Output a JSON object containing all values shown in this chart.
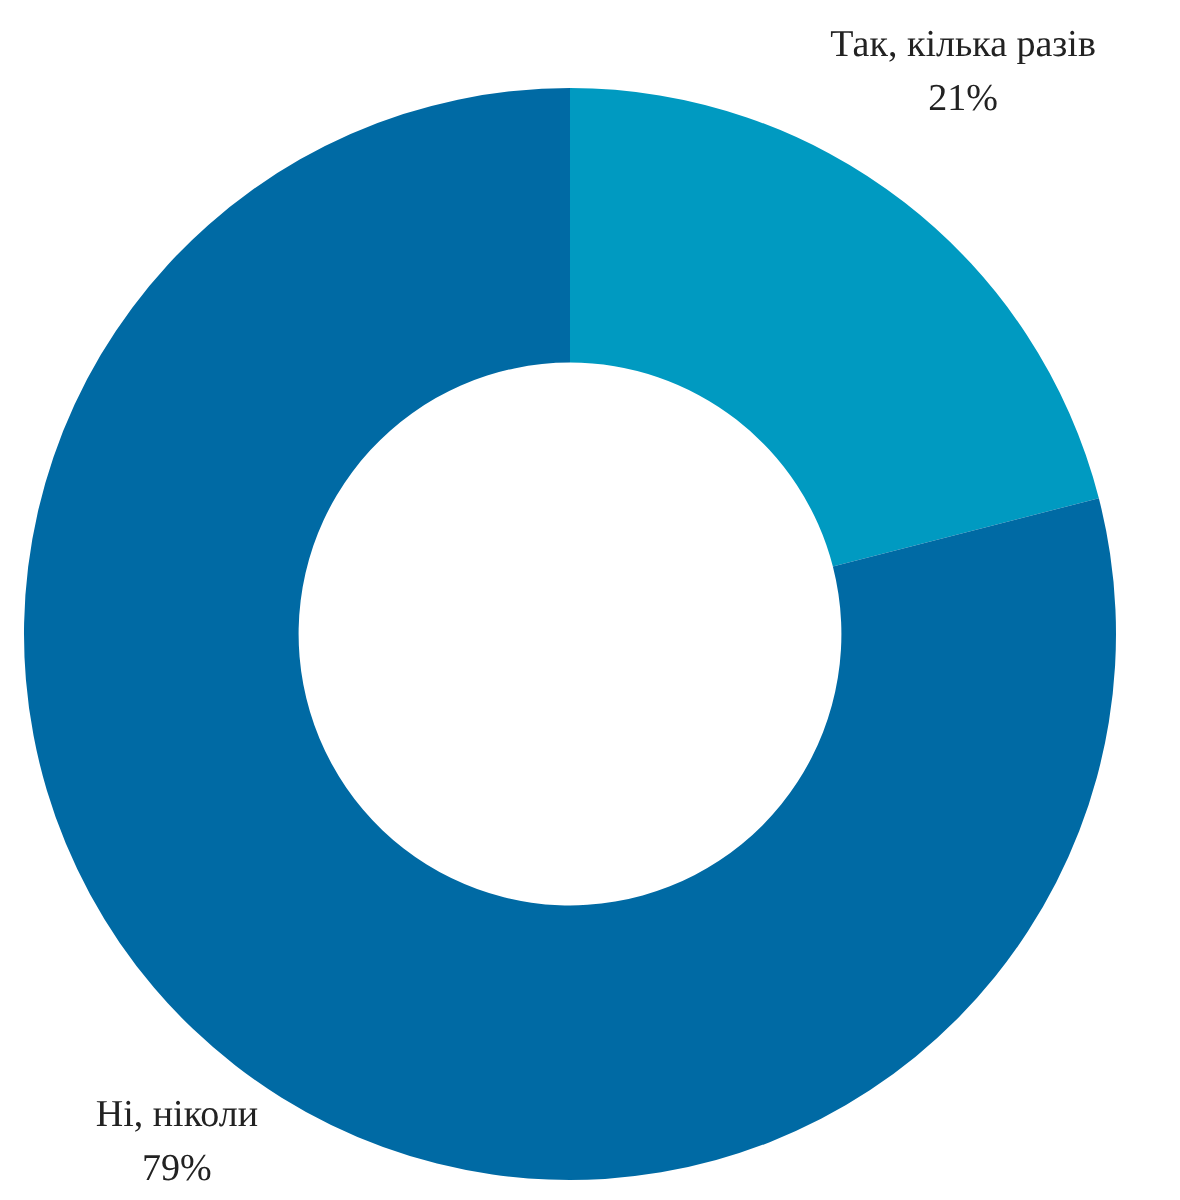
{
  "chart_data": {
    "type": "donut",
    "categories": [
      "Так, кілька разів",
      "Ні, ніколи"
    ],
    "values": [
      21,
      79
    ],
    "colors": [
      "#009ac1",
      "#006aa4"
    ],
    "value_labels": [
      "21%",
      "79%"
    ],
    "legend": false
  }
}
